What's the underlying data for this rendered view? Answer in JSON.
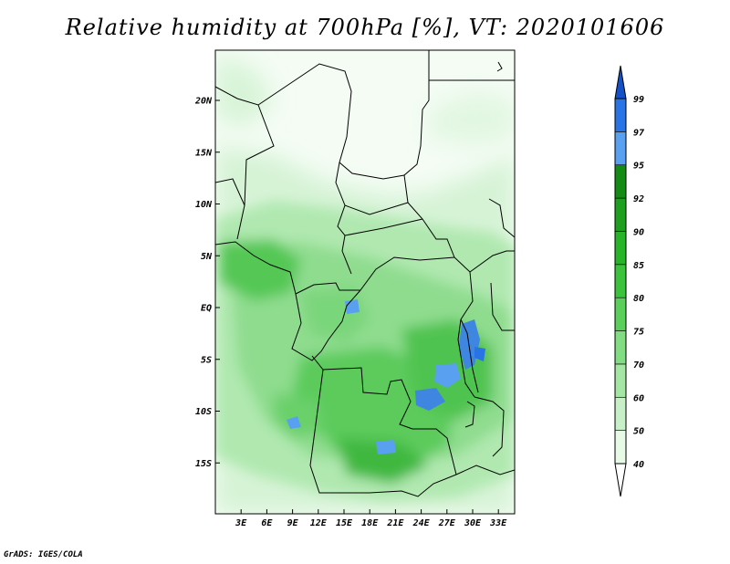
{
  "title": "Relative humidity at 700hPa [%], VT: 2020101606",
  "credit": "GrADS: IGES/COLA",
  "map": {
    "region": "Central Africa",
    "lon_range": [
      0,
      35
    ],
    "lat_range": [
      -20,
      25
    ],
    "x_ticks": [
      {
        "lon": 3,
        "label": "3E"
      },
      {
        "lon": 6,
        "label": "6E"
      },
      {
        "lon": 9,
        "label": "9E"
      },
      {
        "lon": 12,
        "label": "12E"
      },
      {
        "lon": 15,
        "label": "15E"
      },
      {
        "lon": 18,
        "label": "18E"
      },
      {
        "lon": 21,
        "label": "21E"
      },
      {
        "lon": 24,
        "label": "24E"
      },
      {
        "lon": 27,
        "label": "27E"
      },
      {
        "lon": 30,
        "label": "30E"
      },
      {
        "lon": 33,
        "label": "33E"
      }
    ],
    "y_ticks": [
      {
        "lat": 20,
        "label": "20N"
      },
      {
        "lat": 15,
        "label": "15N"
      },
      {
        "lat": 10,
        "label": "10N"
      },
      {
        "lat": 5,
        "label": "5N"
      },
      {
        "lat": 0,
        "label": "EQ"
      },
      {
        "lat": -5,
        "label": "5S"
      },
      {
        "lat": -10,
        "label": "10S"
      },
      {
        "lat": -15,
        "label": "15S"
      }
    ]
  },
  "colorbar": {
    "levels": [
      "40",
      "50",
      "60",
      "70",
      "75",
      "80",
      "85",
      "90",
      "92",
      "95",
      "97",
      "99"
    ],
    "colors": [
      "#ffffff",
      "#e6fae6",
      "#c8f0c8",
      "#a5e6a5",
      "#82dc82",
      "#5ad05a",
      "#3cc33c",
      "#28b428",
      "#1ea01e",
      "#148c14",
      "#5aa0f0",
      "#2873e6",
      "#1450c8"
    ]
  }
}
